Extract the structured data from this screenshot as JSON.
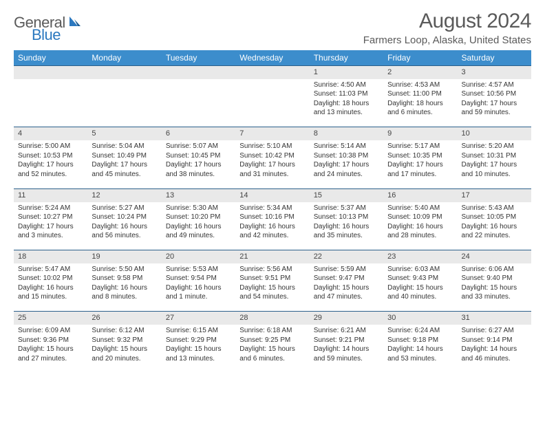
{
  "logo": {
    "part1": "General",
    "part2": "Blue"
  },
  "title": "August 2024",
  "location": "Farmers Loop, Alaska, United States",
  "colors": {
    "header_bg": "#3c8dcc",
    "daynum_bg": "#e9e9e9",
    "row_border": "#2b5f8a",
    "text": "#333333",
    "title_text": "#5a5a5a",
    "logo_blue": "#2b78bf"
  },
  "day_headers": [
    "Sunday",
    "Monday",
    "Tuesday",
    "Wednesday",
    "Thursday",
    "Friday",
    "Saturday"
  ],
  "weeks": [
    {
      "nums": [
        "",
        "",
        "",
        "",
        "1",
        "2",
        "3"
      ],
      "cells": [
        null,
        null,
        null,
        null,
        {
          "sunrise": "4:50 AM",
          "sunset": "11:03 PM",
          "daylight": "18 hours and 13 minutes."
        },
        {
          "sunrise": "4:53 AM",
          "sunset": "11:00 PM",
          "daylight": "18 hours and 6 minutes."
        },
        {
          "sunrise": "4:57 AM",
          "sunset": "10:56 PM",
          "daylight": "17 hours and 59 minutes."
        }
      ]
    },
    {
      "nums": [
        "4",
        "5",
        "6",
        "7",
        "8",
        "9",
        "10"
      ],
      "cells": [
        {
          "sunrise": "5:00 AM",
          "sunset": "10:53 PM",
          "daylight": "17 hours and 52 minutes."
        },
        {
          "sunrise": "5:04 AM",
          "sunset": "10:49 PM",
          "daylight": "17 hours and 45 minutes."
        },
        {
          "sunrise": "5:07 AM",
          "sunset": "10:45 PM",
          "daylight": "17 hours and 38 minutes."
        },
        {
          "sunrise": "5:10 AM",
          "sunset": "10:42 PM",
          "daylight": "17 hours and 31 minutes."
        },
        {
          "sunrise": "5:14 AM",
          "sunset": "10:38 PM",
          "daylight": "17 hours and 24 minutes."
        },
        {
          "sunrise": "5:17 AM",
          "sunset": "10:35 PM",
          "daylight": "17 hours and 17 minutes."
        },
        {
          "sunrise": "5:20 AM",
          "sunset": "10:31 PM",
          "daylight": "17 hours and 10 minutes."
        }
      ]
    },
    {
      "nums": [
        "11",
        "12",
        "13",
        "14",
        "15",
        "16",
        "17"
      ],
      "cells": [
        {
          "sunrise": "5:24 AM",
          "sunset": "10:27 PM",
          "daylight": "17 hours and 3 minutes."
        },
        {
          "sunrise": "5:27 AM",
          "sunset": "10:24 PM",
          "daylight": "16 hours and 56 minutes."
        },
        {
          "sunrise": "5:30 AM",
          "sunset": "10:20 PM",
          "daylight": "16 hours and 49 minutes."
        },
        {
          "sunrise": "5:34 AM",
          "sunset": "10:16 PM",
          "daylight": "16 hours and 42 minutes."
        },
        {
          "sunrise": "5:37 AM",
          "sunset": "10:13 PM",
          "daylight": "16 hours and 35 minutes."
        },
        {
          "sunrise": "5:40 AM",
          "sunset": "10:09 PM",
          "daylight": "16 hours and 28 minutes."
        },
        {
          "sunrise": "5:43 AM",
          "sunset": "10:05 PM",
          "daylight": "16 hours and 22 minutes."
        }
      ]
    },
    {
      "nums": [
        "18",
        "19",
        "20",
        "21",
        "22",
        "23",
        "24"
      ],
      "cells": [
        {
          "sunrise": "5:47 AM",
          "sunset": "10:02 PM",
          "daylight": "16 hours and 15 minutes."
        },
        {
          "sunrise": "5:50 AM",
          "sunset": "9:58 PM",
          "daylight": "16 hours and 8 minutes."
        },
        {
          "sunrise": "5:53 AM",
          "sunset": "9:54 PM",
          "daylight": "16 hours and 1 minute."
        },
        {
          "sunrise": "5:56 AM",
          "sunset": "9:51 PM",
          "daylight": "15 hours and 54 minutes."
        },
        {
          "sunrise": "5:59 AM",
          "sunset": "9:47 PM",
          "daylight": "15 hours and 47 minutes."
        },
        {
          "sunrise": "6:03 AM",
          "sunset": "9:43 PM",
          "daylight": "15 hours and 40 minutes."
        },
        {
          "sunrise": "6:06 AM",
          "sunset": "9:40 PM",
          "daylight": "15 hours and 33 minutes."
        }
      ]
    },
    {
      "nums": [
        "25",
        "26",
        "27",
        "28",
        "29",
        "30",
        "31"
      ],
      "cells": [
        {
          "sunrise": "6:09 AM",
          "sunset": "9:36 PM",
          "daylight": "15 hours and 27 minutes."
        },
        {
          "sunrise": "6:12 AM",
          "sunset": "9:32 PM",
          "daylight": "15 hours and 20 minutes."
        },
        {
          "sunrise": "6:15 AM",
          "sunset": "9:29 PM",
          "daylight": "15 hours and 13 minutes."
        },
        {
          "sunrise": "6:18 AM",
          "sunset": "9:25 PM",
          "daylight": "15 hours and 6 minutes."
        },
        {
          "sunrise": "6:21 AM",
          "sunset": "9:21 PM",
          "daylight": "14 hours and 59 minutes."
        },
        {
          "sunrise": "6:24 AM",
          "sunset": "9:18 PM",
          "daylight": "14 hours and 53 minutes."
        },
        {
          "sunrise": "6:27 AM",
          "sunset": "9:14 PM",
          "daylight": "14 hours and 46 minutes."
        }
      ]
    }
  ],
  "labels": {
    "sunrise": "Sunrise: ",
    "sunset": "Sunset: ",
    "daylight": "Daylight: "
  }
}
